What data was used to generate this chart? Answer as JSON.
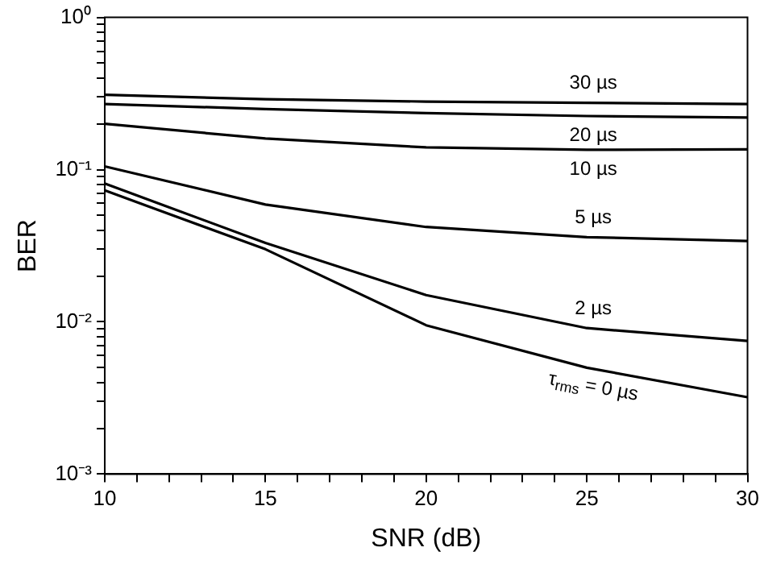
{
  "chart_data": {
    "type": "line",
    "xlabel": "SNR (dB)",
    "ylabel": "BER",
    "log": "y",
    "grid": false,
    "legend": false,
    "marker": "none",
    "line_style": "solid",
    "x": [
      10,
      15,
      20,
      25,
      30
    ],
    "xlim": [
      10,
      30
    ],
    "xticks": [
      10,
      {
        "value": 11,
        "label": null
      },
      {
        "value": 12,
        "label": null
      },
      {
        "value": 13,
        "label": null
      },
      {
        "value": 14,
        "label": null
      },
      15,
      {
        "value": 16,
        "label": null
      },
      {
        "value": 17,
        "label": null
      },
      {
        "value": 18,
        "label": null
      },
      {
        "value": 19,
        "label": null
      },
      20,
      {
        "value": 21,
        "label": null
      },
      {
        "value": 22,
        "label": null
      },
      {
        "value": 23,
        "label": null
      },
      {
        "value": 24,
        "label": null
      },
      25,
      {
        "value": 26,
        "label": null
      },
      {
        "value": 27,
        "label": null
      },
      {
        "value": 28,
        "label": null
      },
      {
        "value": 29,
        "label": null
      },
      30
    ],
    "ylim": [
      0.001,
      1
    ],
    "yticks": [
      {
        "value": 0.001,
        "label": "10⁻³"
      },
      {
        "value": 0.002,
        "label": null
      },
      {
        "value": 0.003,
        "label": null
      },
      {
        "value": 0.004,
        "label": null
      },
      {
        "value": 0.005,
        "label": null
      },
      {
        "value": 0.006,
        "label": null
      },
      {
        "value": 0.007,
        "label": null
      },
      {
        "value": 0.008,
        "label": null
      },
      {
        "value": 0.009,
        "label": null
      },
      {
        "value": 0.01,
        "label": "10⁻²"
      },
      {
        "value": 0.02,
        "label": null
      },
      {
        "value": 0.03,
        "label": null
      },
      {
        "value": 0.04,
        "label": null
      },
      {
        "value": 0.05,
        "label": null
      },
      {
        "value": 0.06,
        "label": null
      },
      {
        "value": 0.07,
        "label": null
      },
      {
        "value": 0.08,
        "label": null
      },
      {
        "value": 0.09,
        "label": null
      },
      {
        "value": 0.1,
        "label": "10⁻¹"
      },
      {
        "value": 0.2,
        "label": null
      },
      {
        "value": 0.3,
        "label": null
      },
      {
        "value": 0.4,
        "label": null
      },
      {
        "value": 0.5,
        "label": null
      },
      {
        "value": 0.6,
        "label": null
      },
      {
        "value": 0.7,
        "label": null
      },
      {
        "value": 0.8,
        "label": null
      },
      {
        "value": 0.9,
        "label": null
      },
      {
        "value": 1,
        "label": "10⁰"
      }
    ],
    "series": [
      {
        "name": "30 µs",
        "color": "#000000",
        "values": [
          0.31,
          0.29,
          0.28,
          0.275,
          0.27
        ]
      },
      {
        "name": "20 µs",
        "color": "#000000",
        "values": [
          0.27,
          0.25,
          0.235,
          0.225,
          0.22
        ]
      },
      {
        "name": "10 µs",
        "color": "#000000",
        "values": [
          0.2,
          0.16,
          0.14,
          0.135,
          0.136
        ]
      },
      {
        "name": "5 µs",
        "color": "#000000",
        "values": [
          0.105,
          0.059,
          0.042,
          0.036,
          0.034
        ]
      },
      {
        "name": "2 µs",
        "color": "#000000",
        "values": [
          0.081,
          0.033,
          0.015,
          0.0091,
          0.0075
        ]
      },
      {
        "name": "τ$_{rms}$ = 0 µs",
        "color": "#000000",
        "values": [
          0.073,
          0.03,
          0.0095,
          0.005,
          0.0032
        ]
      }
    ]
  }
}
